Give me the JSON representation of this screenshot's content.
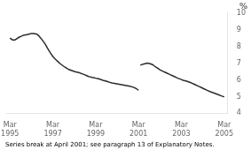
{
  "chart_data": {
    "type": "line",
    "ylabel": "%",
    "footnote": "Series break at April 2001; see paragraph 13 of Explanatory Notes.",
    "xlim": [
      -2,
      122
    ],
    "xticks": [
      {
        "value": 0,
        "label": "Mar\n1995"
      },
      {
        "value": 24,
        "label": "Mar\n1997"
      },
      {
        "value": 48,
        "label": "Mar\n1999"
      },
      {
        "value": 72,
        "label": "Mar\n2001"
      },
      {
        "value": 96,
        "label": "Mar\n2003"
      },
      {
        "value": 120,
        "label": "Mar\n2005"
      }
    ],
    "ylim": [
      4,
      10
    ],
    "yticks": [
      4,
      5,
      6,
      7,
      8,
      9,
      10
    ],
    "grid": false,
    "series": [
      {
        "color": "#2a2a2a",
        "x": [
          0,
          1,
          2,
          3,
          4,
          5,
          6,
          7,
          8,
          9,
          10,
          11,
          12,
          13,
          14,
          15,
          16,
          17,
          18,
          19,
          20,
          21,
          22,
          23,
          24,
          25,
          26,
          27,
          28,
          29,
          30,
          31,
          32,
          33,
          34,
          35,
          36,
          37,
          38,
          39,
          40,
          41,
          42,
          43,
          44,
          45,
          46,
          47,
          48,
          49,
          50,
          51,
          52,
          53,
          54,
          55,
          56,
          57,
          58,
          59,
          60,
          61,
          62,
          63,
          64,
          65,
          66,
          67,
          68,
          69,
          70,
          71,
          72
        ],
        "values": [
          8.5,
          8.42,
          8.38,
          8.4,
          8.48,
          8.55,
          8.6,
          8.65,
          8.68,
          8.7,
          8.72,
          8.75,
          8.78,
          8.78,
          8.76,
          8.74,
          8.65,
          8.52,
          8.4,
          8.25,
          8.1,
          7.9,
          7.72,
          7.55,
          7.4,
          7.28,
          7.18,
          7.08,
          6.98,
          6.9,
          6.82,
          6.75,
          6.68,
          6.62,
          6.58,
          6.54,
          6.5,
          6.48,
          6.45,
          6.42,
          6.38,
          6.34,
          6.3,
          6.25,
          6.2,
          6.18,
          6.15,
          6.13,
          6.1,
          6.08,
          6.05,
          6.02,
          5.98,
          5.95,
          5.92,
          5.88,
          5.85,
          5.82,
          5.8,
          5.78,
          5.76,
          5.74,
          5.72,
          5.7,
          5.68,
          5.66,
          5.64,
          5.62,
          5.6,
          5.56,
          5.52,
          5.46,
          5.38
        ]
      },
      {
        "color": "#2a2a2a",
        "x": [
          73,
          74,
          75,
          76,
          77,
          78,
          79,
          80,
          81,
          82,
          83,
          84,
          85,
          86,
          87,
          88,
          89,
          90,
          91,
          92,
          93,
          94,
          95,
          96,
          97,
          98,
          99,
          100,
          101,
          102,
          103,
          104,
          105,
          106,
          107,
          108,
          109,
          110,
          111,
          112,
          113,
          114,
          115,
          116,
          117,
          118,
          119,
          120
        ],
        "values": [
          6.88,
          6.92,
          6.95,
          6.98,
          7.0,
          6.98,
          6.95,
          6.9,
          6.82,
          6.75,
          6.68,
          6.6,
          6.55,
          6.5,
          6.45,
          6.4,
          6.35,
          6.3,
          6.25,
          6.2,
          6.15,
          6.1,
          6.06,
          6.02,
          5.98,
          5.95,
          5.92,
          5.88,
          5.84,
          5.8,
          5.75,
          5.7,
          5.65,
          5.6,
          5.55,
          5.5,
          5.45,
          5.4,
          5.35,
          5.3,
          5.26,
          5.22,
          5.18,
          5.14,
          5.1,
          5.06,
          5.02,
          4.98
        ]
      }
    ]
  }
}
